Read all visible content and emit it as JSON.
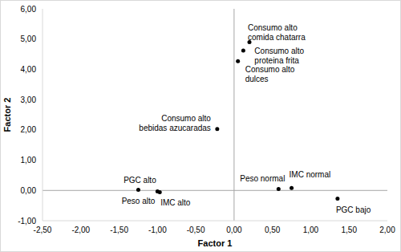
{
  "chart_data": {
    "type": "scatter",
    "x_label": "Factor 1",
    "y_label": "Factor 2",
    "color": "#000000",
    "marker": "circle",
    "grid": false,
    "points": [
      {
        "label": "Consumo alto comida chatarra",
        "x": 0.2,
        "y": 4.9
      },
      {
        "label": "Consumo alto proteina frita",
        "x": 0.12,
        "y": 4.62
      },
      {
        "label": "Consumo alto dulces",
        "x": 0.05,
        "y": 4.27
      },
      {
        "label": "Consumo alto bebidas azucaradas",
        "x": -0.22,
        "y": 2.03
      },
      {
        "label": "PGC alto",
        "x": -1.25,
        "y": 0.02
      },
      {
        "label": "Peso alto",
        "x": -1.0,
        "y": -0.03
      },
      {
        "label": "IMC alto",
        "x": -0.97,
        "y": -0.06
      },
      {
        "label": "Peso normal",
        "x": 0.58,
        "y": 0.05
      },
      {
        "label": "IMC normal",
        "x": 0.75,
        "y": 0.08
      },
      {
        "label": "PGC bajo",
        "x": 1.35,
        "y": -0.27
      }
    ],
    "xlim": [
      -2.5,
      2.0
    ],
    "xticks": [
      {
        "value": -2.5,
        "label": "-2,50"
      },
      {
        "value": -2.0,
        "label": "-2,00"
      },
      {
        "value": -1.5,
        "label": "-1,50"
      },
      {
        "value": -1.0,
        "label": "-1,00"
      },
      {
        "value": -0.5,
        "label": "-0,50"
      },
      {
        "value": 0,
        "label": "0,00"
      },
      {
        "value": 0.5,
        "label": "0,50"
      },
      {
        "value": 1.0,
        "label": "1,00"
      },
      {
        "value": 1.5,
        "label": "1,50"
      },
      {
        "value": 2.0,
        "label": "2,00"
      }
    ],
    "ylim": [
      -1,
      6
    ],
    "yticks": [
      {
        "value": -1,
        "label": "-1,00"
      },
      {
        "value": 0,
        "label": "0,00"
      },
      {
        "value": 1,
        "label": "1,00"
      },
      {
        "value": 2,
        "label": "2,00"
      },
      {
        "value": 3,
        "label": "3,00"
      },
      {
        "value": 4,
        "label": "4,00"
      },
      {
        "value": 5,
        "label": "5,00"
      },
      {
        "value": 6,
        "label": "6,00"
      }
    ]
  }
}
